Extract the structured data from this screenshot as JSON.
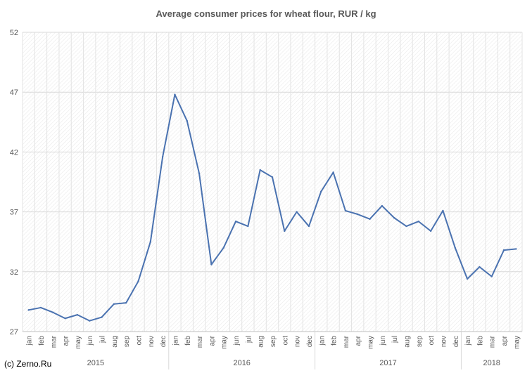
{
  "chart_data": {
    "type": "line",
    "title": "Average consumer prices for wheat flour, RUR / kg",
    "xlabel": "",
    "ylabel": "",
    "ylim": [
      27,
      52
    ],
    "yticks": [
      27,
      32,
      37,
      42,
      47,
      52
    ],
    "grid": true,
    "legend": "none",
    "line_color": "#4a72b0",
    "categories": [
      "jan",
      "feb",
      "mar",
      "apr",
      "may",
      "jun",
      "jul",
      "aug",
      "sep",
      "oct",
      "nov",
      "dec",
      "jan",
      "feb",
      "mar",
      "apr",
      "may",
      "jun",
      "jul",
      "aug",
      "sep",
      "oct",
      "nov",
      "dec",
      "jan",
      "feb",
      "mar",
      "apr",
      "may",
      "jun",
      "jul",
      "aug",
      "sep",
      "oct",
      "nov",
      "dec",
      "jan",
      "feb",
      "mar",
      "apr",
      "may"
    ],
    "year_groups": [
      {
        "label": "2015",
        "count": 12
      },
      {
        "label": "2016",
        "count": 12
      },
      {
        "label": "2017",
        "count": 12
      },
      {
        "label": "2018",
        "count": 5
      }
    ],
    "series": [
      {
        "values": [
          28.8,
          29.0,
          28.6,
          28.1,
          28.4,
          27.9,
          28.2,
          29.3,
          29.4,
          31.2,
          34.5,
          41.6,
          46.8,
          44.6,
          40.2,
          32.6,
          34.0,
          36.2,
          35.8,
          40.5,
          39.9,
          35.4,
          37.0,
          35.8,
          38.7,
          40.3,
          37.1,
          36.8,
          36.4,
          37.5,
          36.5,
          35.8,
          36.2,
          35.4,
          37.1,
          34.0,
          31.4,
          32.4,
          31.6,
          33.8,
          33.9
        ]
      }
    ]
  },
  "watermark": "(c) Zerno.Ru"
}
